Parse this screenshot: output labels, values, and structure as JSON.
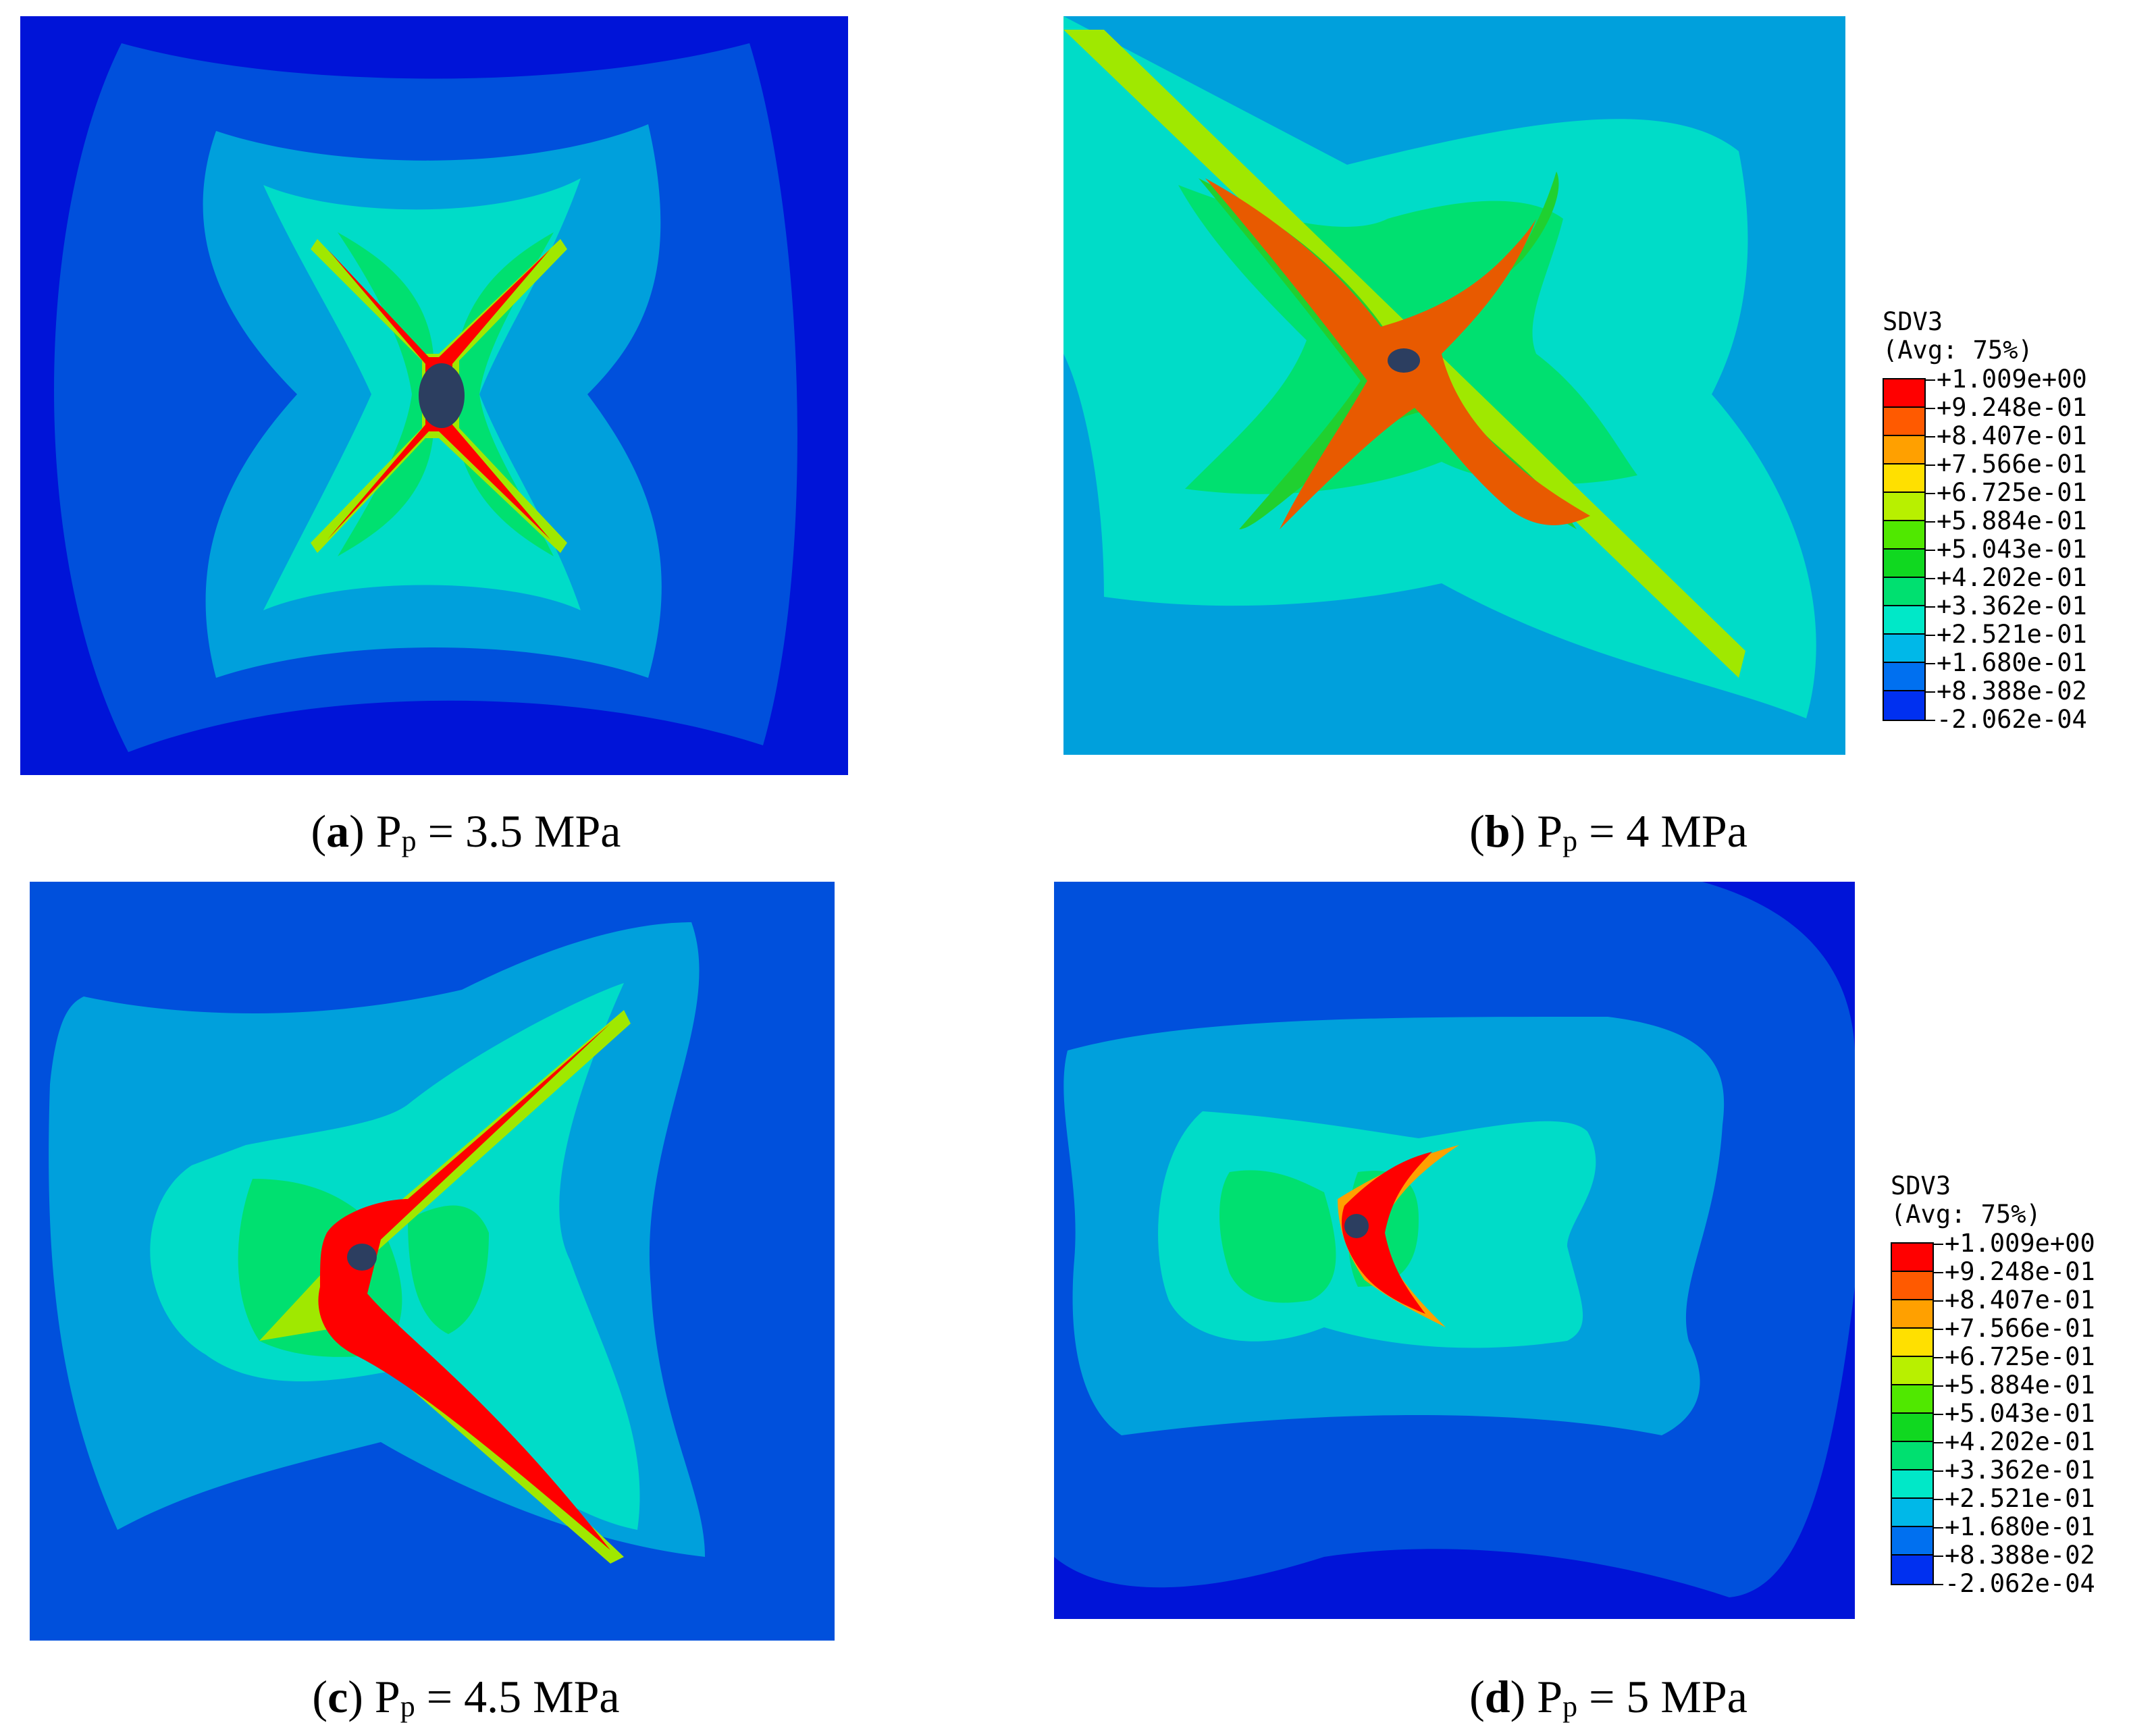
{
  "panels": [
    {
      "id": "a",
      "letter": "a",
      "pressure": "3.5 MPa"
    },
    {
      "id": "b",
      "letter": "b",
      "pressure": "4 MPa"
    },
    {
      "id": "c",
      "letter": "c",
      "pressure": "4.5 MPa"
    },
    {
      "id": "d",
      "letter": "d",
      "pressure": "5 MPa"
    }
  ],
  "caption_symbol": "P",
  "caption_subscript": "p",
  "legend": {
    "variable": "SDV3",
    "averaging": "(Avg: 75%)",
    "levels": [
      "+1.009e+00",
      "+9.248e-01",
      "+8.407e-01",
      "+7.566e-01",
      "+6.725e-01",
      "+5.884e-01",
      "+5.043e-01",
      "+4.202e-01",
      "+3.362e-01",
      "+2.521e-01",
      "+1.680e-01",
      "+8.388e-02",
      "-2.062e-04"
    ],
    "colors": [
      "#ff0000",
      "#ff5a00",
      "#ffa000",
      "#ffe000",
      "#b8f000",
      "#50e800",
      "#10d820",
      "#00e070",
      "#00e8c8",
      "#00b8e8",
      "#0070f0",
      "#0030f0"
    ]
  },
  "contour_colors": {
    "c0": "#0014d8",
    "c1": "#0050dc",
    "c2": "#00a0dc",
    "c3": "#00dcc8",
    "c4": "#00e070",
    "c5": "#20d030",
    "c6": "#a0e800",
    "c7": "#ffa000",
    "c8": "#e85a00",
    "c9": "#ff0000",
    "hole": "#2c3e60"
  }
}
